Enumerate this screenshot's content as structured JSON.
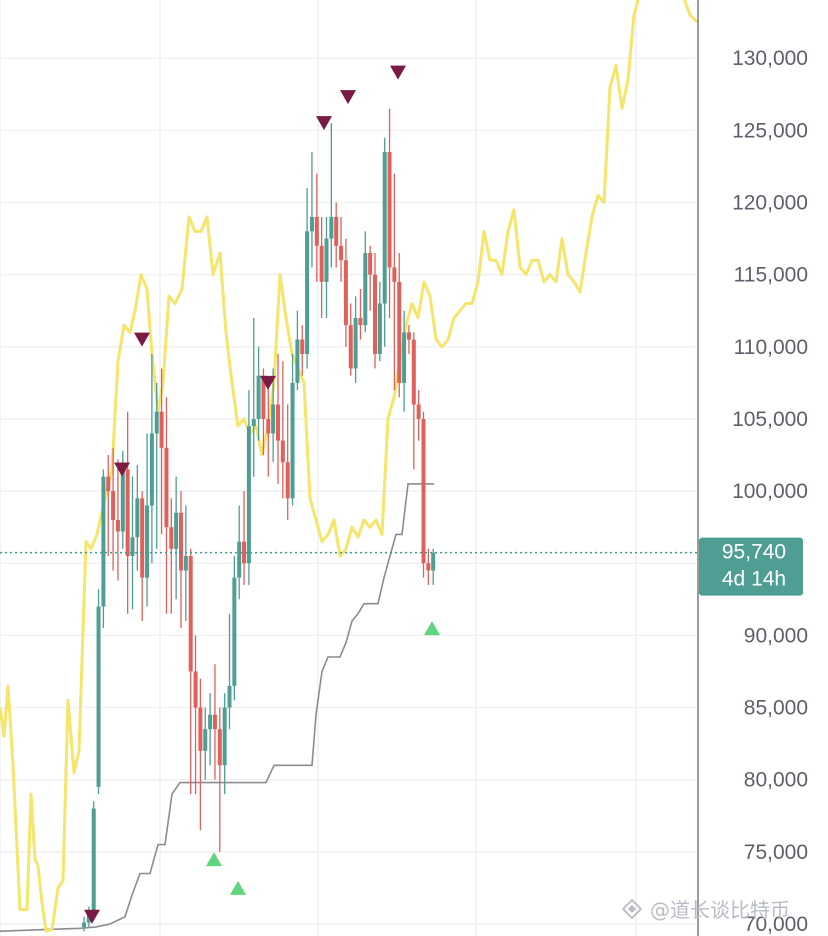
{
  "chart_data": {
    "type": "candlestick",
    "ylim": [
      69500,
      135000
    ],
    "y_ticks": [
      70000,
      75000,
      80000,
      85000,
      90000,
      95000,
      100000,
      105000,
      110000,
      115000,
      120000,
      125000,
      130000
    ],
    "y_tick_labels": [
      "70,000",
      "75,000",
      "80,000",
      "85,000",
      "90,000",
      "100,000",
      "105,000",
      "110,000",
      "115,000",
      "120,000",
      "125,000",
      "130,000"
    ],
    "current_price": {
      "value": 95740,
      "label": "95,740",
      "countdown": "4d 14h"
    },
    "grid": true,
    "colors": {
      "up": "#4e9e94",
      "down": "#e0605a",
      "yellow_line": "#f5e56b",
      "gray_line": "#8a8c91",
      "sell_marker": "#7b1b45",
      "buy_marker": "#5fd67e",
      "price_line": "#3b9b8c",
      "tag_bg": "#4e9e94"
    },
    "candles": [
      [
        69800,
        70100,
        69500,
        70500
      ],
      [
        70100,
        70800,
        69800,
        71200
      ],
      [
        70800,
        78000,
        70300,
        78500
      ],
      [
        79500,
        92000,
        79000,
        93200
      ],
      [
        92000,
        101000,
        90500,
        101500
      ],
      [
        101000,
        100000,
        95500,
        102500
      ],
      [
        100000,
        98000,
        94500,
        103000
      ],
      [
        98000,
        97200,
        93800,
        102200
      ],
      [
        97200,
        101500,
        96000,
        102800
      ],
      [
        101500,
        95500,
        91500,
        105500
      ],
      [
        95500,
        96800,
        91800,
        101000
      ],
      [
        96800,
        99500,
        94500,
        101800
      ],
      [
        99500,
        94000,
        91000,
        100000
      ],
      [
        94000,
        99000,
        92000,
        104000
      ],
      [
        99000,
        104000,
        95000,
        109500
      ],
      [
        104000,
        105500,
        96000,
        107500
      ],
      [
        105500,
        103000,
        97000,
        108500
      ],
      [
        103000,
        97500,
        91500,
        106500
      ],
      [
        97500,
        96000,
        91500,
        99500
      ],
      [
        96000,
        98500,
        92500,
        101000
      ],
      [
        98500,
        94500,
        90500,
        100000
      ],
      [
        94500,
        95500,
        91000,
        99000
      ],
      [
        95500,
        87500,
        79000,
        96000
      ],
      [
        87500,
        85000,
        79000,
        90000
      ],
      [
        85000,
        82000,
        76500,
        87000
      ],
      [
        82000,
        83500,
        80000,
        85000
      ],
      [
        83500,
        84500,
        81000,
        86000
      ],
      [
        84500,
        83500,
        80000,
        88000
      ],
      [
        83500,
        81000,
        75000,
        85000
      ],
      [
        81000,
        85000,
        79000,
        86000
      ],
      [
        85000,
        86500,
        83500,
        91500
      ],
      [
        86500,
        94000,
        85500,
        95500
      ],
      [
        94000,
        96500,
        92500,
        99000
      ],
      [
        96500,
        95000,
        93500,
        100000
      ],
      [
        95000,
        104500,
        93500,
        107000
      ],
      [
        104500,
        105000,
        101000,
        112000
      ],
      [
        105000,
        108000,
        103500,
        110000
      ],
      [
        108000,
        105000,
        102500,
        108500
      ],
      [
        105000,
        104000,
        101000,
        107500
      ],
      [
        104000,
        106000,
        102000,
        108500
      ],
      [
        106000,
        103500,
        100500,
        109500
      ],
      [
        103500,
        102000,
        99500,
        109000
      ],
      [
        102000,
        99500,
        98000,
        106000
      ],
      [
        99500,
        107500,
        99000,
        109500
      ],
      [
        107500,
        110500,
        107000,
        112500
      ],
      [
        110500,
        109500,
        108000,
        111500
      ],
      [
        109500,
        118000,
        108500,
        121000
      ],
      [
        118000,
        119000,
        115500,
        123500
      ],
      [
        119000,
        117000,
        114500,
        122000
      ],
      [
        117000,
        114500,
        112000,
        119000
      ],
      [
        114500,
        117500,
        112000,
        119000
      ],
      [
        117500,
        119000,
        115500,
        125500
      ],
      [
        119000,
        117000,
        115500,
        120000
      ],
      [
        117000,
        116000,
        114500,
        119000
      ],
      [
        116000,
        111500,
        110000,
        117500
      ],
      [
        111500,
        108500,
        108000,
        113000
      ],
      [
        108500,
        112000,
        107500,
        113500
      ],
      [
        112000,
        111500,
        110500,
        114000
      ],
      [
        111500,
        116500,
        111000,
        118000
      ],
      [
        116500,
        115000,
        112500,
        117000
      ],
      [
        115000,
        109500,
        108500,
        116500
      ],
      [
        109500,
        113000,
        109000,
        114500
      ],
      [
        113000,
        123500,
        110000,
        124500
      ],
      [
        123500,
        115500,
        112000,
        126500
      ],
      [
        115500,
        114500,
        107000,
        122000
      ],
      [
        114500,
        107500,
        106500,
        116500
      ],
      [
        107500,
        111000,
        105500,
        112500
      ],
      [
        111000,
        110500,
        109500,
        111500
      ],
      [
        110500,
        106000,
        101500,
        111000
      ],
      [
        106000,
        105000,
        103500,
        107000
      ],
      [
        105000,
        95000,
        94000,
        105500
      ],
      [
        95000,
        94500,
        93500,
        96000
      ],
      [
        94500,
        95740,
        93500,
        96000
      ]
    ],
    "yellow_line": [
      [
        0,
        85000
      ],
      [
        4,
        83000
      ],
      [
        8,
        86500
      ],
      [
        13,
        81000
      ],
      [
        20,
        71000
      ],
      [
        27,
        71000
      ],
      [
        31,
        79000
      ],
      [
        35,
        74500
      ],
      [
        38,
        74000
      ],
      [
        42,
        71500
      ],
      [
        46,
        69500
      ],
      [
        52,
        69600
      ],
      [
        58,
        72500
      ],
      [
        63,
        73000
      ],
      [
        68,
        85500
      ],
      [
        74,
        80500
      ],
      [
        79,
        82000
      ],
      [
        86,
        96500
      ],
      [
        91,
        96000
      ],
      [
        97,
        97000
      ],
      [
        105,
        99500
      ],
      [
        112,
        101500
      ],
      [
        118,
        109000
      ],
      [
        124,
        111500
      ],
      [
        130,
        111000
      ],
      [
        135,
        112500
      ],
      [
        141,
        115000
      ],
      [
        147,
        114000
      ],
      [
        152,
        109500
      ],
      [
        158,
        105500
      ],
      [
        163,
        107500
      ],
      [
        169,
        113500
      ],
      [
        175,
        113000
      ],
      [
        182,
        114000
      ],
      [
        189,
        119000
      ],
      [
        195,
        118000
      ],
      [
        201,
        118000
      ],
      [
        207,
        119000
      ],
      [
        213,
        115000
      ],
      [
        220,
        116500
      ],
      [
        226,
        111000
      ],
      [
        232,
        107500
      ],
      [
        238,
        104500
      ],
      [
        244,
        105000
      ],
      [
        250,
        104000
      ],
      [
        256,
        104500
      ],
      [
        262,
        102500
      ],
      [
        268,
        104500
      ],
      [
        274,
        107500
      ],
      [
        280,
        115000
      ],
      [
        286,
        112000
      ],
      [
        292,
        109500
      ],
      [
        298,
        108500
      ],
      [
        304,
        107500
      ],
      [
        310,
        99500
      ],
      [
        316,
        98000
      ],
      [
        322,
        96500
      ],
      [
        328,
        97000
      ],
      [
        334,
        98000
      ],
      [
        340,
        95500
      ],
      [
        346,
        96000
      ],
      [
        352,
        97500
      ],
      [
        358,
        96800
      ],
      [
        364,
        98000
      ],
      [
        370,
        97500
      ],
      [
        376,
        98000
      ],
      [
        382,
        97000
      ],
      [
        388,
        105000
      ],
      [
        394,
        106500
      ],
      [
        400,
        109000
      ],
      [
        406,
        111500
      ],
      [
        412,
        113000
      ],
      [
        418,
        112000
      ],
      [
        424,
        114500
      ],
      [
        430,
        113500
      ],
      [
        436,
        110500
      ],
      [
        442,
        110000
      ],
      [
        448,
        110500
      ],
      [
        454,
        112000
      ],
      [
        460,
        112500
      ],
      [
        466,
        113000
      ],
      [
        472,
        113000
      ],
      [
        478,
        114500
      ],
      [
        484,
        118000
      ],
      [
        490,
        116000
      ],
      [
        496,
        116000
      ],
      [
        502,
        115000
      ],
      [
        508,
        118000
      ],
      [
        514,
        119500
      ],
      [
        520,
        115500
      ],
      [
        526,
        115000
      ],
      [
        532,
        116000
      ],
      [
        538,
        116000
      ],
      [
        544,
        114500
      ],
      [
        550,
        115000
      ],
      [
        556,
        114500
      ],
      [
        562,
        117500
      ],
      [
        568,
        115000
      ],
      [
        574,
        114500
      ],
      [
        580,
        113800
      ],
      [
        586,
        116500
      ],
      [
        592,
        119000
      ],
      [
        598,
        120500
      ],
      [
        604,
        120000
      ],
      [
        610,
        128000
      ],
      [
        616,
        129500
      ],
      [
        622,
        126500
      ],
      [
        628,
        128500
      ],
      [
        634,
        133000
      ],
      [
        640,
        134500
      ],
      [
        646,
        135500
      ],
      [
        652,
        136500
      ],
      [
        658,
        137000
      ],
      [
        664,
        136500
      ],
      [
        670,
        136000
      ],
      [
        676,
        135500
      ],
      [
        682,
        134500
      ],
      [
        690,
        133000
      ],
      [
        697,
        132500
      ]
    ],
    "gray_line": [
      [
        0,
        69500
      ],
      [
        80,
        69700
      ],
      [
        96,
        69800
      ],
      [
        110,
        70000
      ],
      [
        125,
        70500
      ],
      [
        132,
        72000
      ],
      [
        140,
        73500
      ],
      [
        150,
        73500
      ],
      [
        158,
        75500
      ],
      [
        165,
        75500
      ],
      [
        172,
        79000
      ],
      [
        180,
        79800
      ],
      [
        266,
        79800
      ],
      [
        274,
        81000
      ],
      [
        312,
        81000
      ],
      [
        316,
        84500
      ],
      [
        322,
        87500
      ],
      [
        328,
        88500
      ],
      [
        340,
        88500
      ],
      [
        346,
        89500
      ],
      [
        352,
        91000
      ],
      [
        358,
        91500
      ],
      [
        364,
        92200
      ],
      [
        378,
        92200
      ],
      [
        384,
        94000
      ],
      [
        390,
        95500
      ],
      [
        396,
        97000
      ],
      [
        402,
        97000
      ],
      [
        408,
        100500
      ],
      [
        434,
        100500
      ]
    ],
    "sell_markers": [
      [
        92,
        70500
      ],
      [
        122,
        101500
      ],
      [
        142,
        110500
      ],
      [
        268,
        107500
      ],
      [
        324,
        125500
      ],
      [
        348,
        127300
      ],
      [
        398,
        129000
      ]
    ],
    "buy_markers": [
      [
        214,
        74500
      ],
      [
        238,
        72500
      ],
      [
        432,
        90500
      ]
    ]
  },
  "watermark": {
    "label": "@道长谈比特币",
    "icon": "watermark-logo-icon"
  }
}
